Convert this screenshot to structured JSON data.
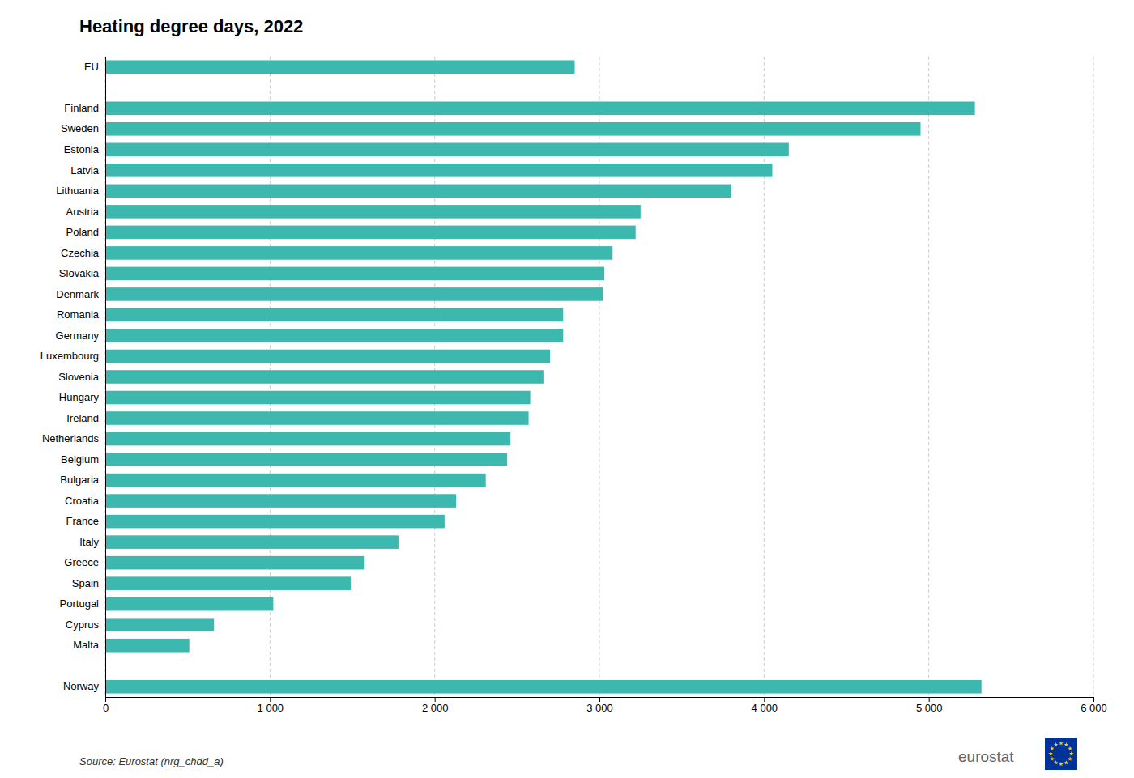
{
  "chart_data": {
    "type": "bar",
    "orientation": "horizontal",
    "title": "Heating degree days, 2022",
    "annotations": [
      "Source: Eurostat (nrg_chdd_a)",
      "eurostat"
    ],
    "color": "#3db8ae",
    "categories": [
      "EU",
      null,
      "Finland",
      "Sweden",
      "Estonia",
      "Latvia",
      "Lithuania",
      "Austria",
      "Poland",
      "Czechia",
      "Slovakia",
      "Denmark",
      "Romania",
      "Germany",
      "Luxembourg",
      "Slovenia",
      "Hungary",
      "Ireland",
      "Netherlands",
      "Belgium",
      "Bulgaria",
      "Croatia",
      "France",
      "Italy",
      "Greece",
      "Spain",
      "Portugal",
      "Cyprus",
      "Malta",
      null,
      "Norway"
    ],
    "values": [
      2850,
      0,
      5280,
      4950,
      4150,
      4050,
      3800,
      3250,
      3220,
      3080,
      3030,
      3020,
      2780,
      2780,
      2700,
      2660,
      2580,
      2570,
      2460,
      2440,
      2310,
      2130,
      2060,
      1780,
      1570,
      1490,
      1020,
      660,
      510,
      0,
      5320
    ],
    "xlim": [
      0,
      6000
    ],
    "xticks": [
      0,
      {
        "value": 1000,
        "label": "1 000"
      },
      {
        "value": 2000,
        "label": "2 000"
      },
      {
        "value": 3000,
        "label": "3 000"
      },
      {
        "value": 4000,
        "label": "4 000"
      },
      {
        "value": 5000,
        "label": "5 000"
      },
      {
        "value": 6000,
        "label": "6 000"
      }
    ],
    "grid": true
  }
}
